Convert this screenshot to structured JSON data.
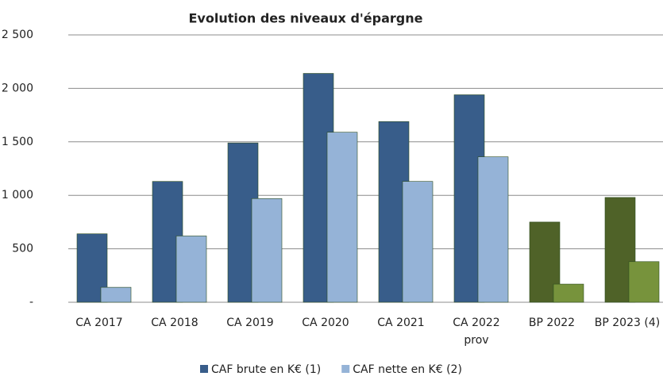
{
  "chart_data": {
    "type": "bar",
    "title": "Evolution des niveaux d'épargne",
    "categories": [
      "CA 2017",
      "CA 2018",
      "CA 2019",
      "CA 2020",
      "CA 2021",
      "CA 2022\nprov",
      "BP 2022",
      "BP 2023 (4)"
    ],
    "series": [
      {
        "name": "CAF brute en K€ (1)",
        "color": "#385d8a",
        "colors": [
          "#385d8a",
          "#385d8a",
          "#385d8a",
          "#385d8a",
          "#385d8a",
          "#385d8a",
          "#4f6228",
          "#4f6228"
        ],
        "values": [
          640,
          1130,
          1490,
          2140,
          1690,
          1940,
          750,
          980
        ]
      },
      {
        "name": "CAF nette en K€ (2)",
        "color": "#95b3d7",
        "colors": [
          "#95b3d7",
          "#95b3d7",
          "#95b3d7",
          "#95b3d7",
          "#95b3d7",
          "#95b3d7",
          "#77933c",
          "#77933c"
        ],
        "values": [
          140,
          620,
          970,
          1590,
          1130,
          1360,
          170,
          380
        ]
      }
    ],
    "ylim": [
      0,
      2500
    ],
    "yticks": [
      {
        "value": 0,
        "label": "-"
      },
      500,
      {
        "value": 1000,
        "label": "1 000"
      },
      {
        "value": 1500,
        "label": "1 500"
      },
      {
        "value": 2000,
        "label": "2 000"
      },
      {
        "value": 2500,
        "label": "2 500"
      }
    ],
    "grid": true,
    "legend": "bottom"
  }
}
